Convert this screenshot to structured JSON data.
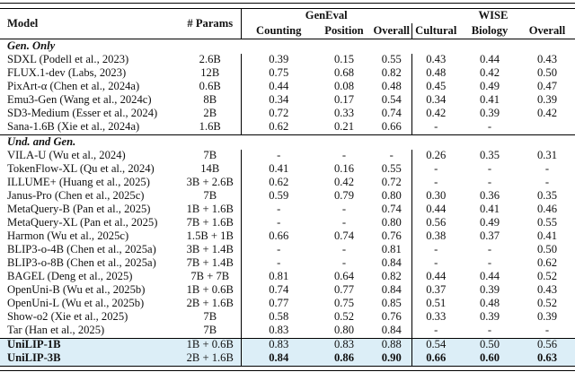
{
  "colors": {
    "highlight": "#dceef7",
    "text": "#111111",
    "rule": "#000000"
  },
  "table": {
    "header": {
      "model": "Model",
      "params": "# Params",
      "groups": [
        {
          "label": "GenEval",
          "cols": [
            "Counting",
            "Position",
            "Overall"
          ]
        },
        {
          "label": "WISE",
          "cols": [
            "Cultural",
            "Biology",
            "Overall"
          ]
        }
      ]
    },
    "sections": [
      {
        "label": "Gen. Only",
        "highlight": false,
        "rows": [
          {
            "model": "SDXL (Podell et al., 2023)",
            "params": "2.6B",
            "values": [
              "0.39",
              "0.15",
              "0.55",
              "0.43",
              "0.44",
              "0.43"
            ]
          },
          {
            "model": "FLUX.1-dev (Labs, 2023)",
            "params": "12B",
            "values": [
              "0.75",
              "0.68",
              "0.82",
              "0.48",
              "0.42",
              "0.50"
            ]
          },
          {
            "model": "PixArt-α (Chen et al., 2024a)",
            "params": "0.6B",
            "values": [
              "0.44",
              "0.08",
              "0.48",
              "0.45",
              "0.49",
              "0.47"
            ]
          },
          {
            "model": "Emu3-Gen (Wang et al., 2024c)",
            "params": "8B",
            "values": [
              "0.34",
              "0.17",
              "0.54",
              "0.34",
              "0.41",
              "0.39"
            ]
          },
          {
            "model": "SD3-Medium (Esser et al., 2024)",
            "params": "2B",
            "values": [
              "0.72",
              "0.33",
              "0.74",
              "0.42",
              "0.39",
              "0.42"
            ]
          },
          {
            "model": "Sana-1.6B (Xie et al., 2024a)",
            "params": "1.6B",
            "values": [
              "0.62",
              "0.21",
              "0.66",
              "-",
              "-",
              ""
            ]
          }
        ]
      },
      {
        "label": "Und. and Gen.",
        "highlight": false,
        "rows": [
          {
            "model": "VILA-U (Wu et al., 2024)",
            "params": "7B",
            "values": [
              "-",
              "-",
              "-",
              "0.26",
              "0.35",
              "0.31"
            ]
          },
          {
            "model": "TokenFlow-XL (Qu et al., 2024)",
            "params": "14B",
            "values": [
              "0.41",
              "0.16",
              "0.55",
              "-",
              "-",
              "-"
            ]
          },
          {
            "model": "ILLUME+ (Huang et al., 2025)",
            "params": "3B + 2.6B",
            "values": [
              "0.62",
              "0.42",
              "0.72",
              "-",
              "-",
              "-"
            ]
          },
          {
            "model": "Janus-Pro (Chen et al., 2025c)",
            "params": "7B",
            "values": [
              "0.59",
              "0.79",
              "0.80",
              "0.30",
              "0.36",
              "0.35"
            ]
          },
          {
            "model": "MetaQuery-B (Pan et al., 2025)",
            "params": "1B + 1.6B",
            "values": [
              "-",
              "-",
              "0.74",
              "0.44",
              "0.41",
              "0.46"
            ]
          },
          {
            "model": "MetaQuery-XL (Pan et al., 2025)",
            "params": "7B + 1.6B",
            "values": [
              "-",
              "-",
              "0.80",
              "0.56",
              "0.49",
              "0.55"
            ]
          },
          {
            "model": "Harmon (Wu et al., 2025c)",
            "params": "1.5B + 1B",
            "values": [
              "0.66",
              "0.74",
              "0.76",
              "0.38",
              "0.37",
              "0.41"
            ]
          },
          {
            "model": "BLIP3-o-4B (Chen et al., 2025a)",
            "params": "3B + 1.4B",
            "values": [
              "-",
              "-",
              "0.81",
              "-",
              "-",
              "0.50"
            ]
          },
          {
            "model": "BLIP3-o-8B (Chen et al., 2025a)",
            "params": "7B + 1.4B",
            "values": [
              "-",
              "-",
              "0.84",
              "-",
              "-",
              "0.62"
            ]
          },
          {
            "model": "BAGEL (Deng et al., 2025)",
            "params": "7B + 7B",
            "values": [
              "0.81",
              "0.64",
              "0.82",
              "0.44",
              "0.44",
              "0.52"
            ]
          },
          {
            "model": "OpenUni-B (Wu et al., 2025b)",
            "params": "1B + 0.6B",
            "values": [
              "0.74",
              "0.77",
              "0.84",
              "0.37",
              "0.39",
              "0.43"
            ]
          },
          {
            "model": "OpenUni-L (Wu et al., 2025b)",
            "params": "2B + 1.6B",
            "values": [
              "0.77",
              "0.75",
              "0.85",
              "0.51",
              "0.48",
              "0.52"
            ]
          },
          {
            "model": "Show-o2 (Xie et al., 2025)",
            "params": "7B",
            "values": [
              "0.58",
              "0.52",
              "0.76",
              "0.33",
              "0.39",
              "0.39"
            ]
          },
          {
            "model": "Tar (Han et al., 2025)",
            "params": "7B",
            "values": [
              "0.83",
              "0.80",
              "0.84",
              "-",
              "-",
              "-"
            ]
          }
        ]
      },
      {
        "label": null,
        "highlight": true,
        "rows": [
          {
            "model": "UniLIP-1B",
            "params": "1B + 0.6B",
            "values": [
              "0.83",
              "0.83",
              "0.88",
              "0.54",
              "0.50",
              "0.56"
            ],
            "bold_model": true
          },
          {
            "model": "UniLIP-3B",
            "params": "2B + 1.6B",
            "values": [
              "0.84",
              "0.86",
              "0.90",
              "0.66",
              "0.60",
              "0.63"
            ],
            "bold_model": true,
            "bold_values": true
          }
        ]
      }
    ]
  }
}
